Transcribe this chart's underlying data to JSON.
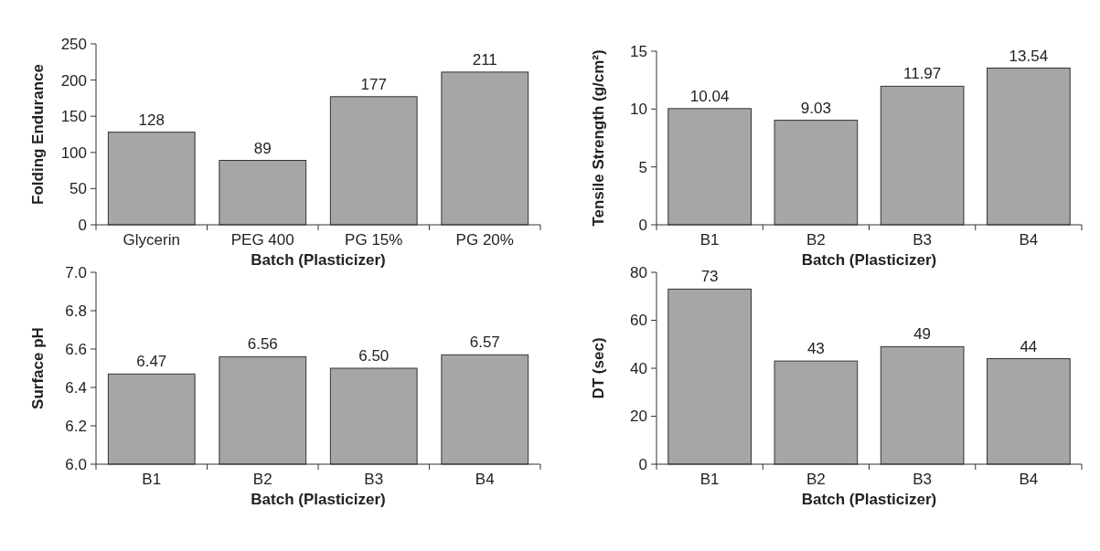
{
  "chart_data": [
    {
      "type": "bar",
      "categories": [
        "Glycerin",
        "PEG 400",
        "PG 15%",
        "PG 20%"
      ],
      "values": [
        128,
        89,
        177,
        211
      ],
      "color": "#a6a6a6",
      "ylim": [
        0,
        250
      ],
      "yticks": [
        0,
        50,
        100,
        150,
        200,
        250
      ],
      "xlabel": "Batch (Plasticizer)",
      "ylabel": "Folding Endurance",
      "data_labels": true
    },
    {
      "type": "bar",
      "categories": [
        "B1",
        "B2",
        "B3",
        "B4"
      ],
      "values": [
        10.04,
        9.03,
        11.97,
        13.54
      ],
      "color": "#a6a6a6",
      "ylim": [
        0,
        15
      ],
      "yticks": [
        0,
        5,
        10,
        15
      ],
      "xlabel": "Batch (Plasticizer)",
      "ylabel": "Tensile Strength (g/cm²)",
      "data_labels": true
    },
    {
      "type": "bar",
      "categories": [
        "B1",
        "B2",
        "B3",
        "B4"
      ],
      "values": [
        6.47,
        6.56,
        6.5,
        6.57
      ],
      "value_labels": [
        "6.47",
        "6.56",
        "6.50",
        "6.57"
      ],
      "color": "#a6a6a6",
      "ylim": [
        6,
        7
      ],
      "yticks": [
        {
          "value": 6,
          "label": "6.0"
        },
        6.2,
        6.4,
        6.6,
        6.8,
        {
          "value": 7,
          "label": "7.0"
        }
      ],
      "xlabel": "Batch (Plasticizer)",
      "ylabel": "Surface pH"
    },
    {
      "type": "bar",
      "categories": [
        "B1",
        "B2",
        "B3",
        "B4"
      ],
      "values": [
        73,
        43,
        49,
        44
      ],
      "color": "#a6a6a6",
      "ylim": [
        0,
        80
      ],
      "yticks": [
        0,
        20,
        40,
        60,
        80
      ],
      "xlabel": "Batch (Plasticizer)",
      "ylabel": "DT (sec)",
      "data_labels": true
    }
  ]
}
